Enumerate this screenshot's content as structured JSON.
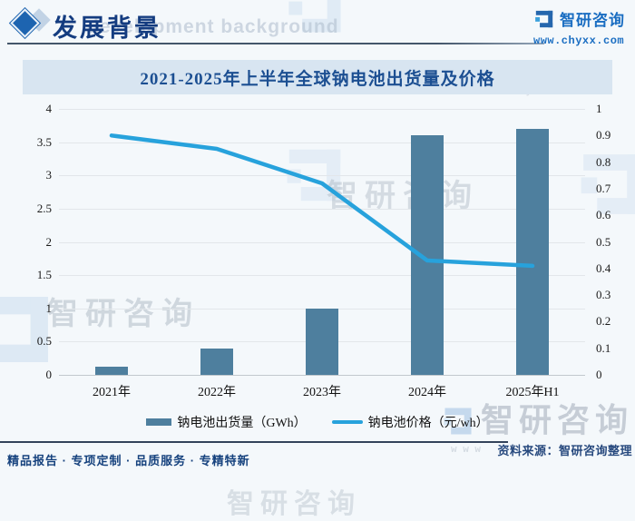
{
  "header": {
    "title": "发展背景",
    "watermark_text": "development background",
    "brand_name": "智研咨询",
    "brand_url": "www.chyxx.com"
  },
  "chart": {
    "title": "2021-2025年上半年全球钠电池出货量及价格",
    "legend": [
      {
        "label": "钠电池出货量（GWh）",
        "type": "bar",
        "color": "#4e7f9e"
      },
      {
        "label": "钠电池价格（元/wh）",
        "type": "line",
        "color": "#27a2dc"
      }
    ]
  },
  "chart_data": {
    "type": "bar",
    "title": "2021-2025年上半年全球钠电池出货量及价格",
    "categories": [
      "2021年",
      "2022年",
      "2023年",
      "2024年",
      "2025年H1"
    ],
    "series": [
      {
        "name": "钠电池出货量（GWh）",
        "type": "bar",
        "yaxis": "left",
        "values": [
          0.13,
          0.4,
          1.0,
          3.6,
          3.7
        ]
      },
      {
        "name": "钠电池价格（元/wh）",
        "type": "line",
        "yaxis": "right",
        "values": [
          0.9,
          0.85,
          0.72,
          0.43,
          0.41
        ]
      }
    ],
    "left_axis": {
      "min": 0,
      "max": 4,
      "step": 0.5,
      "ticks": [
        "0",
        "0.5",
        "1",
        "1.5",
        "2",
        "2.5",
        "3",
        "3.5",
        "4"
      ]
    },
    "right_axis": {
      "min": 0,
      "max": 1,
      "step": 0.1,
      "ticks": [
        "0",
        "0.1",
        "0.2",
        "0.3",
        "0.4",
        "0.5",
        "0.6",
        "0.7",
        "0.8",
        "0.9",
        "1"
      ]
    },
    "grid": true,
    "legend_position": "bottom",
    "colors": {
      "bar": "#4e7f9e",
      "line": "#27a2dc"
    }
  },
  "watermarks": {
    "brand_text": "智研咨询",
    "brand_url": "www.chyxx.com"
  },
  "footer": {
    "tagline": "精品报告 · 专项定制 · 品质服务 · 专精特新",
    "source": "资料来源：智研咨询整理"
  }
}
